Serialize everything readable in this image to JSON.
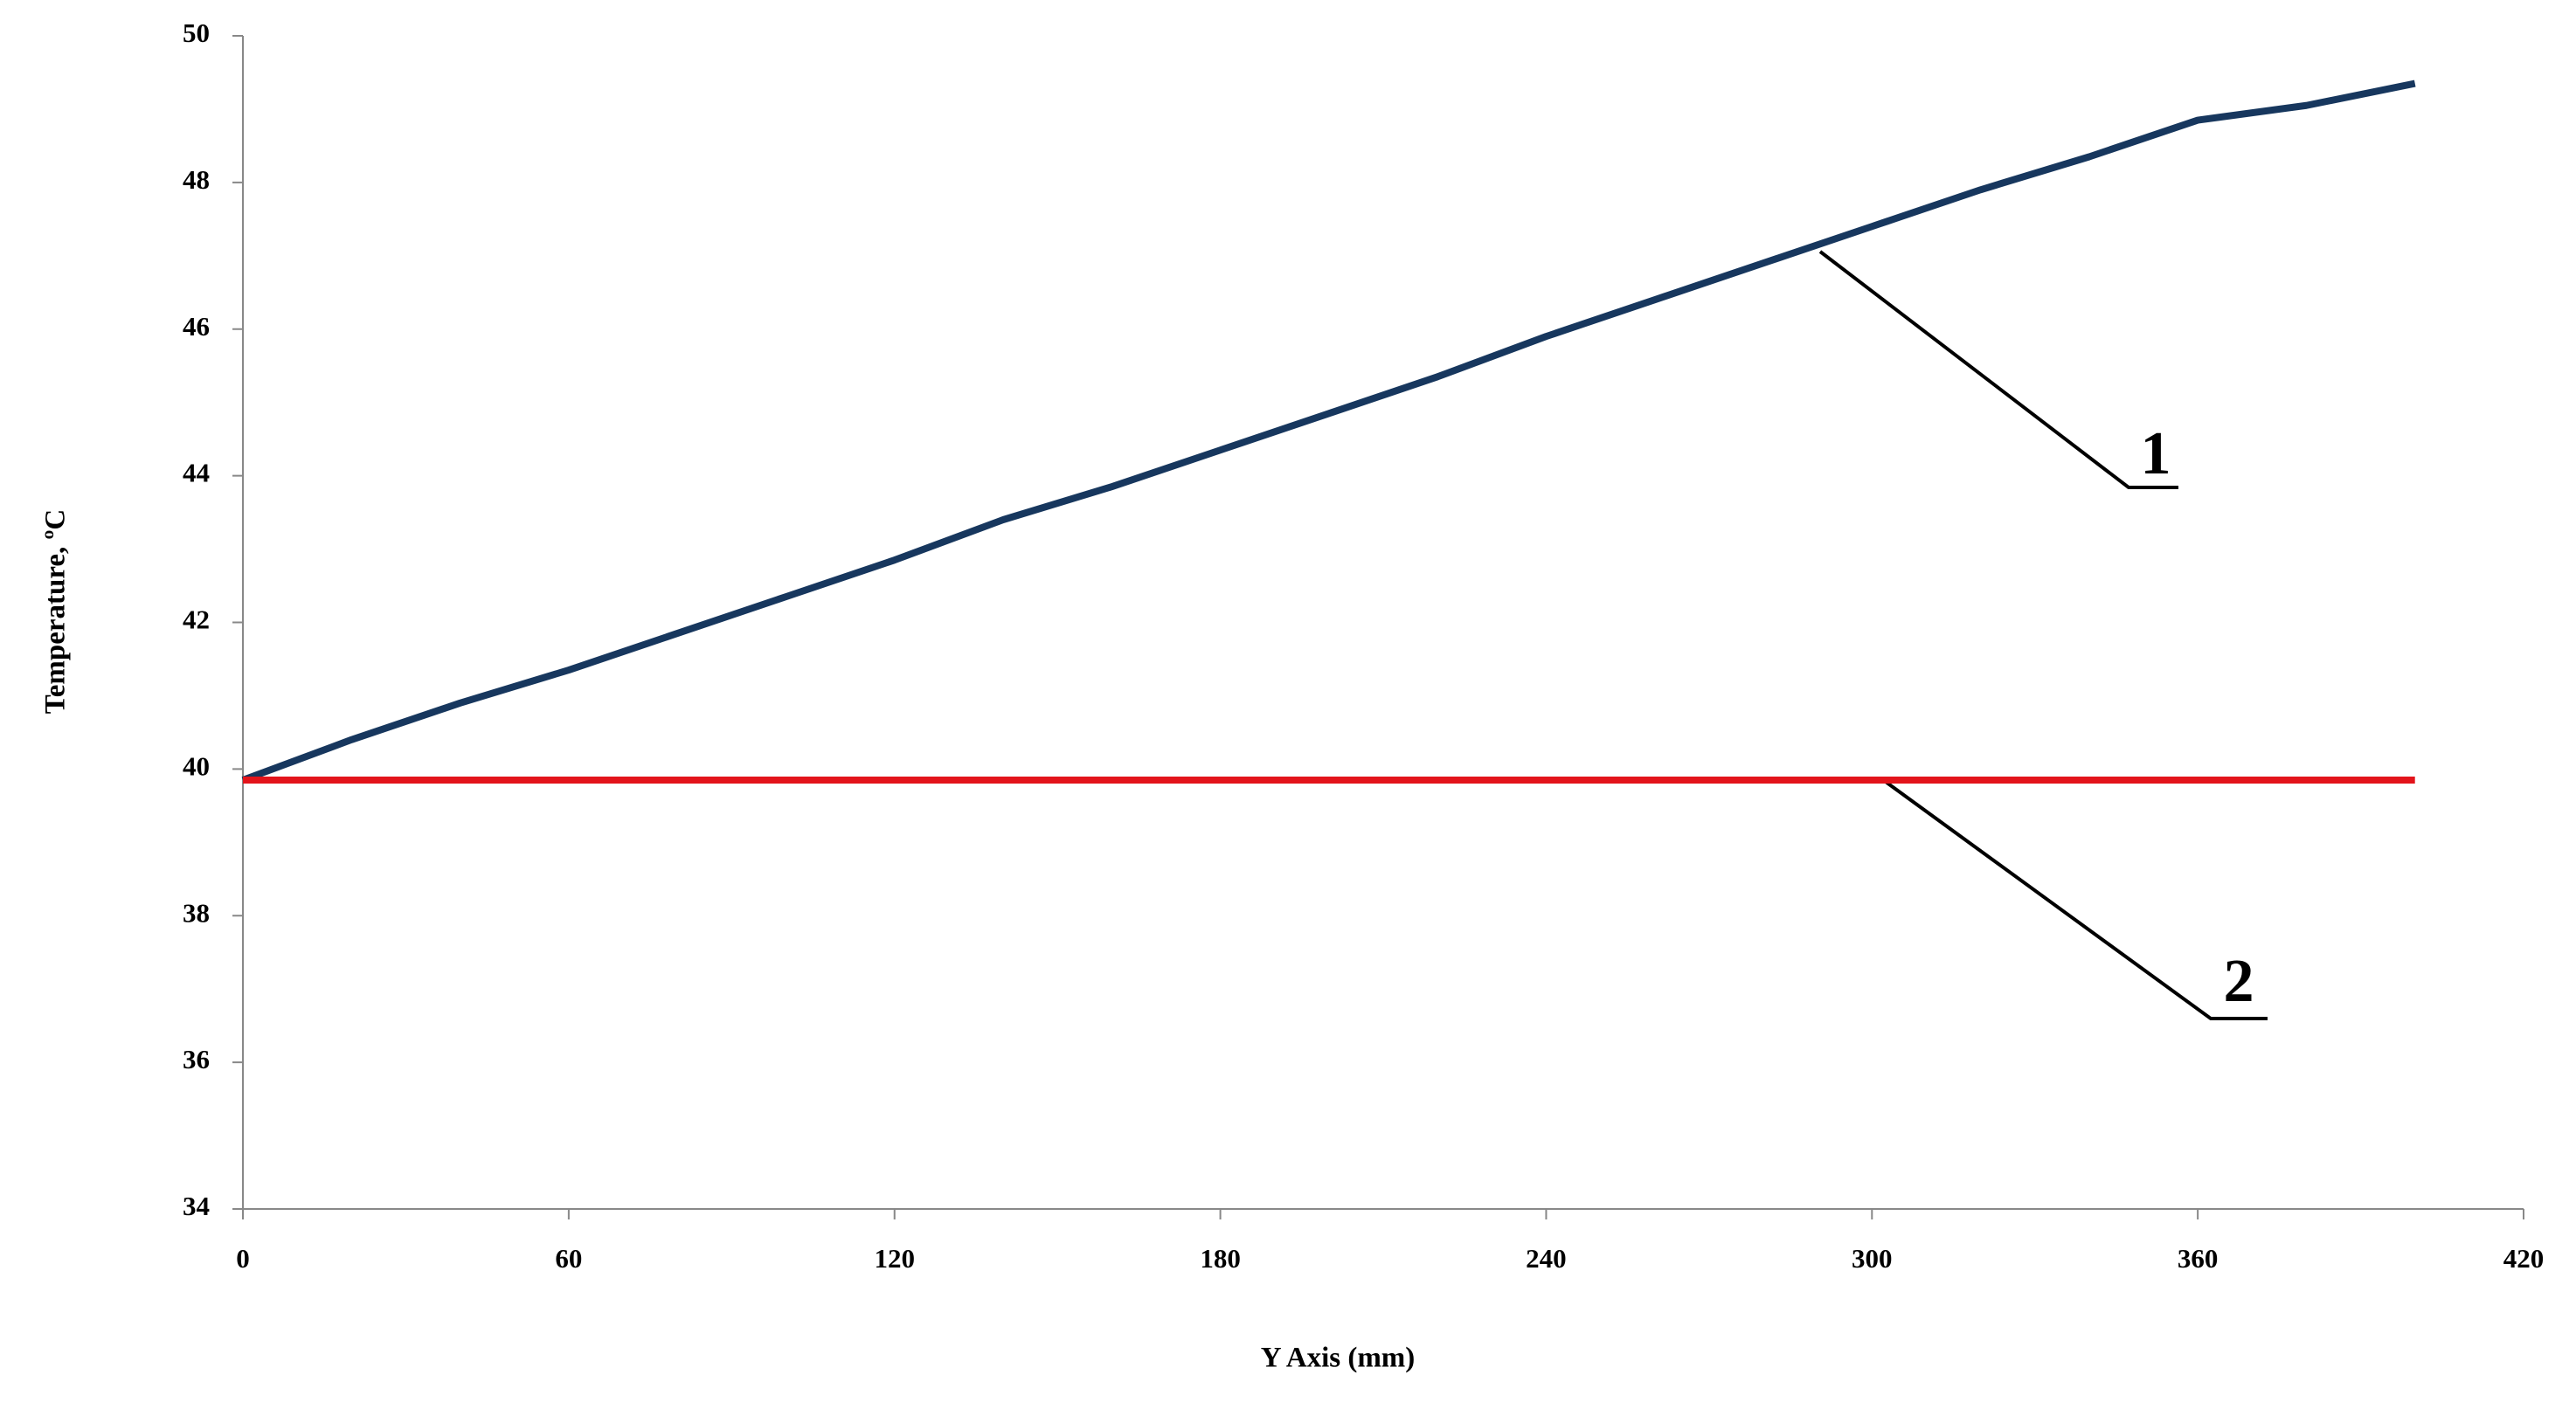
{
  "chart_data": {
    "type": "line",
    "x_label": "Y Axis (mm)",
    "y_label": "Temperature, ºC",
    "xlim": [
      0,
      420
    ],
    "xticks": [
      0,
      60,
      120,
      180,
      240,
      300,
      360,
      420
    ],
    "ylim": [
      34,
      50
    ],
    "yticks": [
      34,
      36,
      38,
      40,
      42,
      44,
      46,
      48,
      50
    ],
    "grid": false,
    "series": [
      {
        "name": "1",
        "color": "#17375e",
        "x": [
          0,
          20,
          40,
          60,
          80,
          100,
          120,
          140,
          160,
          180,
          200,
          220,
          240,
          260,
          280,
          300,
          320,
          340,
          360,
          380,
          400
        ],
        "values": [
          39.85,
          40.4,
          40.9,
          41.35,
          41.85,
          42.35,
          42.85,
          43.4,
          43.85,
          44.35,
          44.85,
          45.35,
          45.9,
          46.4,
          46.9,
          47.4,
          47.9,
          48.35,
          48.85,
          49.05,
          49.35
        ]
      },
      {
        "name": "2",
        "color": "#e3141b",
        "x": [
          0,
          400
        ],
        "values": [
          39.85,
          39.85
        ]
      }
    ]
  }
}
